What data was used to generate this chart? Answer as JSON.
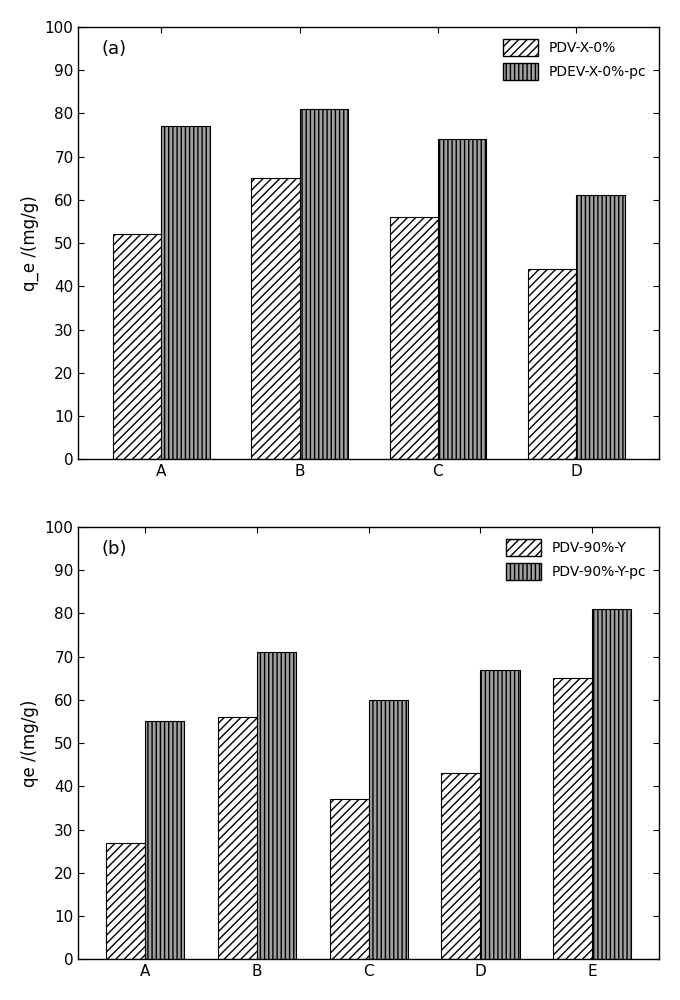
{
  "plot_a": {
    "categories": [
      "A",
      "B",
      "C",
      "D"
    ],
    "series1_values": [
      52,
      65,
      56,
      44
    ],
    "series2_values": [
      77,
      81,
      74,
      61
    ],
    "series1_label": "PDV-X-0%",
    "series2_label": "PDEV-X-0%-pc",
    "ylabel": "q_e /(mg/g)",
    "ylim": [
      0,
      100
    ],
    "yticks": [
      0,
      10,
      20,
      30,
      40,
      50,
      60,
      70,
      80,
      90,
      100
    ],
    "panel_label": "(a)"
  },
  "plot_b": {
    "categories": [
      "A",
      "B",
      "C",
      "D",
      "E"
    ],
    "series1_values": [
      27,
      56,
      37,
      43,
      65
    ],
    "series2_values": [
      55,
      71,
      60,
      67,
      81
    ],
    "series1_label": "PDV-90%-Y",
    "series2_label": "PDV-90%-Y-pc",
    "ylabel": "qe /(mg/g)",
    "ylim": [
      0,
      100
    ],
    "yticks": [
      0,
      10,
      20,
      30,
      40,
      50,
      60,
      70,
      80,
      90,
      100
    ],
    "panel_label": "(b)"
  },
  "hatch_bar1": "////",
  "hatch_bar2": "||||",
  "color_bar1": "#ffffff",
  "color_bar2": "#a0a0a0",
  "edgecolor": "#000000",
  "bar_width": 0.35,
  "figsize": [
    6.8,
    10.0
  ],
  "dpi": 100,
  "background_color": "#ffffff",
  "legend_fontsize": 10,
  "tick_fontsize": 11,
  "label_fontsize": 12,
  "panel_label_fontsize": 13
}
